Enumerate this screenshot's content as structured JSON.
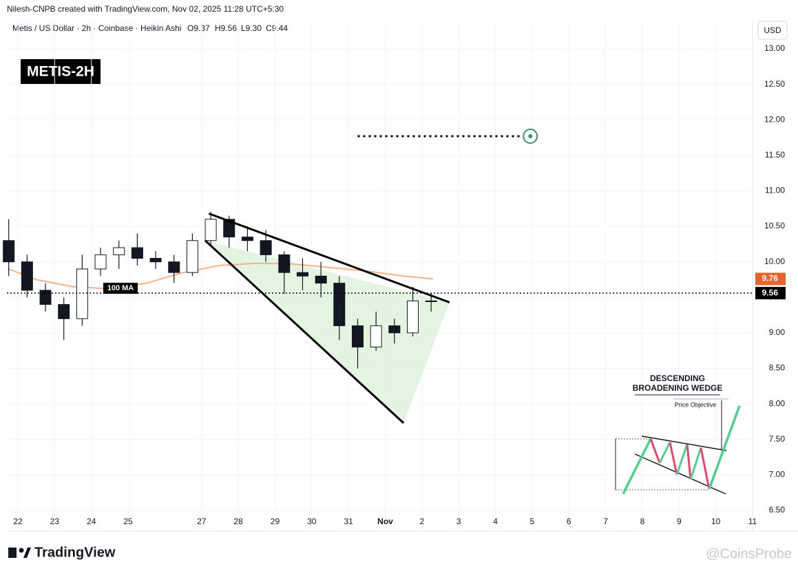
{
  "header": {
    "byline": "Nilesh-CNPB created with TradingView.com, Nov 02, 2025 11:28 UTC+5:30",
    "symbol": "Metis / US Dollar · 2h · Coinbase · Heikin Ashi",
    "ohlc": [
      "O9.37",
      "H9.56",
      "L9.30",
      "C9.44"
    ],
    "currency": "USD"
  },
  "chart_data": {
    "type": "candlestick",
    "title": "METIS-2H",
    "x": [
      21.75,
      22.25,
      22.75,
      23.25,
      23.75,
      24.25,
      24.75,
      25.25,
      25.75,
      26.25,
      26.75,
      27.25,
      27.75,
      28.25,
      28.75,
      29.25,
      29.75,
      30.25,
      30.75,
      31.25,
      31.75,
      32.25,
      32.75,
      33.25
    ],
    "open": [
      10.3,
      10.0,
      9.6,
      9.4,
      9.2,
      9.9,
      10.1,
      10.2,
      10.05,
      10.0,
      9.85,
      10.3,
      10.6,
      10.35,
      10.3,
      10.1,
      9.85,
      9.8,
      9.7,
      9.1,
      8.8,
      9.1,
      9.0,
      9.45
    ],
    "high": [
      10.6,
      10.1,
      9.7,
      9.5,
      10.1,
      10.2,
      10.3,
      10.4,
      10.15,
      10.1,
      10.4,
      10.7,
      10.65,
      10.5,
      10.45,
      10.15,
      10.05,
      10.0,
      9.8,
      9.2,
      9.3,
      9.2,
      9.65,
      9.56
    ],
    "low": [
      9.8,
      9.5,
      9.3,
      8.9,
      9.1,
      9.8,
      9.9,
      9.95,
      9.9,
      9.7,
      9.8,
      10.25,
      10.2,
      10.15,
      10.0,
      9.55,
      9.6,
      9.5,
      8.9,
      8.5,
      8.75,
      8.85,
      8.95,
      9.3
    ],
    "close": [
      10.0,
      9.6,
      9.4,
      9.2,
      9.9,
      10.1,
      10.2,
      10.05,
      10.0,
      9.85,
      10.3,
      10.6,
      10.35,
      10.3,
      10.1,
      9.85,
      9.8,
      9.7,
      9.1,
      8.8,
      9.1,
      9.0,
      9.45,
      9.44
    ],
    "color": "#131722",
    "ma": {
      "name": "100 MA",
      "color": "#f2b08c",
      "label_color": "#e8632b",
      "x": [
        21.75,
        22.5,
        23.5,
        24.5,
        25.5,
        26.5,
        27.5,
        28.5,
        29.5,
        30.5,
        31.5,
        32.5,
        33.3
      ],
      "values": [
        9.9,
        9.75,
        9.65,
        9.62,
        9.7,
        9.85,
        9.95,
        9.98,
        9.97,
        9.92,
        9.87,
        9.8,
        9.76
      ]
    },
    "price_line": 9.56,
    "target": {
      "level": 11.77,
      "x": [
        31.25,
        35.95
      ],
      "color": "#3e8e6e"
    },
    "wedge": {
      "upper": {
        "x": [
          27.2,
          33.75
        ],
        "y": [
          10.68,
          9.43
        ]
      },
      "lower": {
        "x": [
          27.1,
          32.5
        ],
        "y": [
          10.3,
          7.73
        ]
      },
      "fill": "#dcf1da"
    },
    "xlim": [
      21.7,
      42
    ],
    "ylim": [
      6.5,
      13
    ],
    "xticks": [
      22,
      23,
      24,
      25,
      27,
      28,
      29,
      30,
      31,
      {
        "value": 32,
        "label": "Nov"
      },
      {
        "value": 33,
        "label": "2"
      },
      {
        "value": 34,
        "label": "3"
      },
      {
        "value": 35,
        "label": "4"
      },
      {
        "value": 36,
        "label": "5"
      },
      {
        "value": 37,
        "label": "6"
      },
      {
        "value": 38,
        "label": "7"
      },
      {
        "value": 39,
        "label": "8"
      },
      {
        "value": 40,
        "label": "9"
      },
      {
        "value": 41,
        "label": "10"
      },
      {
        "value": 42,
        "label": "11"
      }
    ],
    "yticks": [
      {
        "value": 6.5,
        "label": "6.50"
      },
      {
        "value": 7,
        "label": "7.00"
      },
      {
        "value": 7.5,
        "label": "7.50"
      },
      {
        "value": 8,
        "label": "8.00"
      },
      {
        "value": 8.5,
        "label": "8.50"
      },
      {
        "value": 9,
        "label": "9.00"
      },
      {
        "value": 9.5,
        "label": "9.50"
      },
      {
        "value": 10,
        "label": "10.00"
      },
      {
        "value": 10.5,
        "label": "10.50"
      },
      {
        "value": 11,
        "label": "11.00"
      },
      {
        "value": 11.5,
        "label": "11.50"
      },
      {
        "value": 12,
        "label": "12.00"
      },
      {
        "value": 12.5,
        "label": "12.50"
      },
      {
        "value": 13,
        "label": "13.00"
      }
    ],
    "grid": true
  },
  "inset": {
    "title_line1": "DESCENDING",
    "title_line2": "BROADENING WEDGE",
    "note": "Price Objective"
  },
  "footer": {
    "brand": "TradingView",
    "watermark": "@CoinsProbe"
  }
}
